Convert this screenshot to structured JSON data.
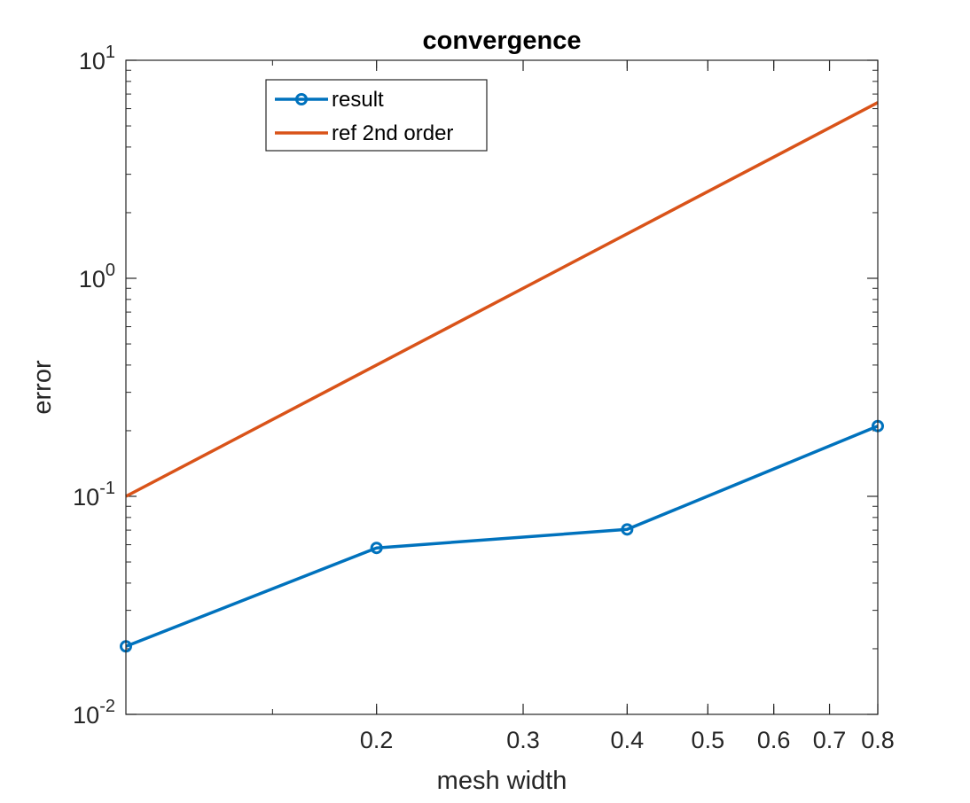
{
  "chart_data": {
    "type": "line",
    "title": "convergence",
    "xlabel": "mesh width",
    "ylabel": "error",
    "x_scale": "log",
    "y_scale": "log",
    "xlim": [
      0.1,
      0.8
    ],
    "ylim": [
      0.01,
      10
    ],
    "grid": false,
    "legend_position": "top-left",
    "x_ticks": [
      {
        "value": 0.2,
        "label": "0.2"
      },
      {
        "value": 0.3,
        "label": "0.3"
      },
      {
        "value": 0.4,
        "label": "0.4"
      },
      {
        "value": 0.5,
        "label": "0.5"
      },
      {
        "value": 0.6,
        "label": "0.6"
      },
      {
        "value": 0.7,
        "label": "0.7"
      },
      {
        "value": 0.8,
        "label": "0.8"
      }
    ],
    "y_ticks": [
      {
        "value": 0.01,
        "base": "10",
        "exp": "-2"
      },
      {
        "value": 0.1,
        "base": "10",
        "exp": "-1"
      },
      {
        "value": 1,
        "base": "10",
        "exp": "0"
      },
      {
        "value": 10,
        "base": "10",
        "exp": "1"
      }
    ],
    "series": [
      {
        "name": "result",
        "color": "#0072BD",
        "marker": "circle",
        "x": [
          0.1,
          0.2,
          0.4,
          0.8
        ],
        "y": [
          0.0205,
          0.058,
          0.0705,
          0.21
        ]
      },
      {
        "name": "ref 2nd order",
        "color": "#D95319",
        "marker": "none",
        "x": [
          0.1,
          0.8
        ],
        "y": [
          0.1,
          6.4
        ]
      }
    ]
  }
}
